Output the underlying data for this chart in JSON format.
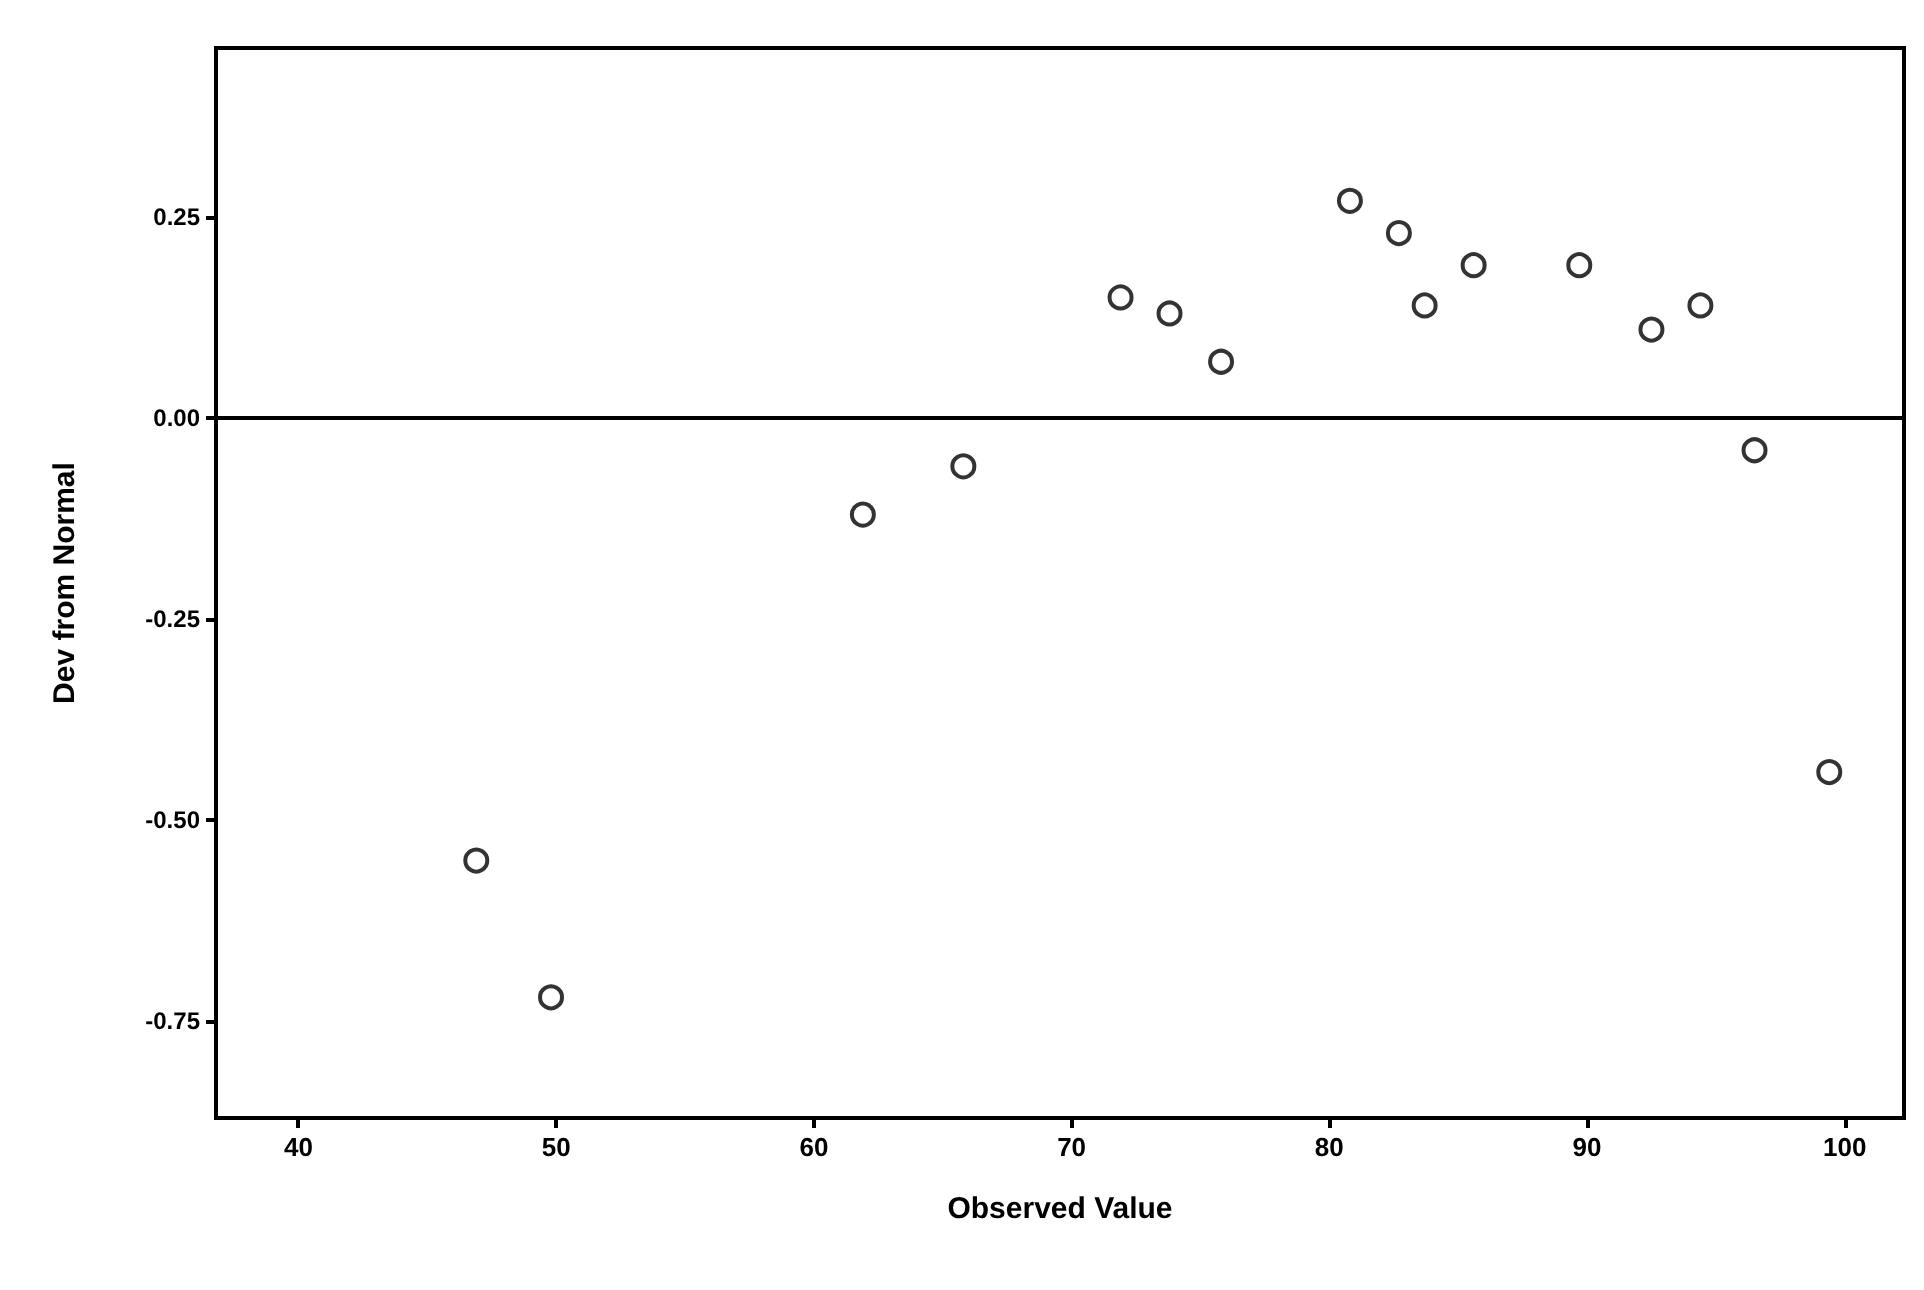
{
  "chart_data": {
    "type": "scatter",
    "xlabel": "Observed Value",
    "ylabel": "Dev from Normal",
    "x": [
      46.9,
      49.8,
      61.9,
      65.8,
      71.9,
      73.8,
      75.8,
      80.8,
      82.7,
      83.7,
      85.6,
      89.7,
      92.5,
      94.4,
      96.5,
      99.4
    ],
    "values": [
      -0.55,
      -0.72,
      -0.12,
      -0.06,
      0.15,
      0.13,
      0.07,
      0.27,
      0.23,
      0.14,
      0.19,
      0.19,
      0.11,
      0.14,
      -0.04,
      -0.44
    ],
    "color": "#000000",
    "marker": "circle",
    "grid": false,
    "xlim": [
      36.8,
      102.3
    ],
    "xticks": [
      40,
      50,
      60,
      70,
      80,
      90,
      100
    ],
    "ylim": [
      -0.87,
      0.46
    ],
    "yticks": [
      {
        "value": 0.25,
        "label": "0.25"
      },
      {
        "value": 0,
        "label": "0.00"
      },
      {
        "value": -0.25,
        "label": "-0.25"
      },
      {
        "value": -0.5,
        "label": "-0.50"
      },
      {
        "value": -0.75,
        "label": "-0.75"
      }
    ],
    "ref_lines": [
      {
        "axis": "y",
        "value": 0,
        "color": "#000000"
      }
    ]
  }
}
